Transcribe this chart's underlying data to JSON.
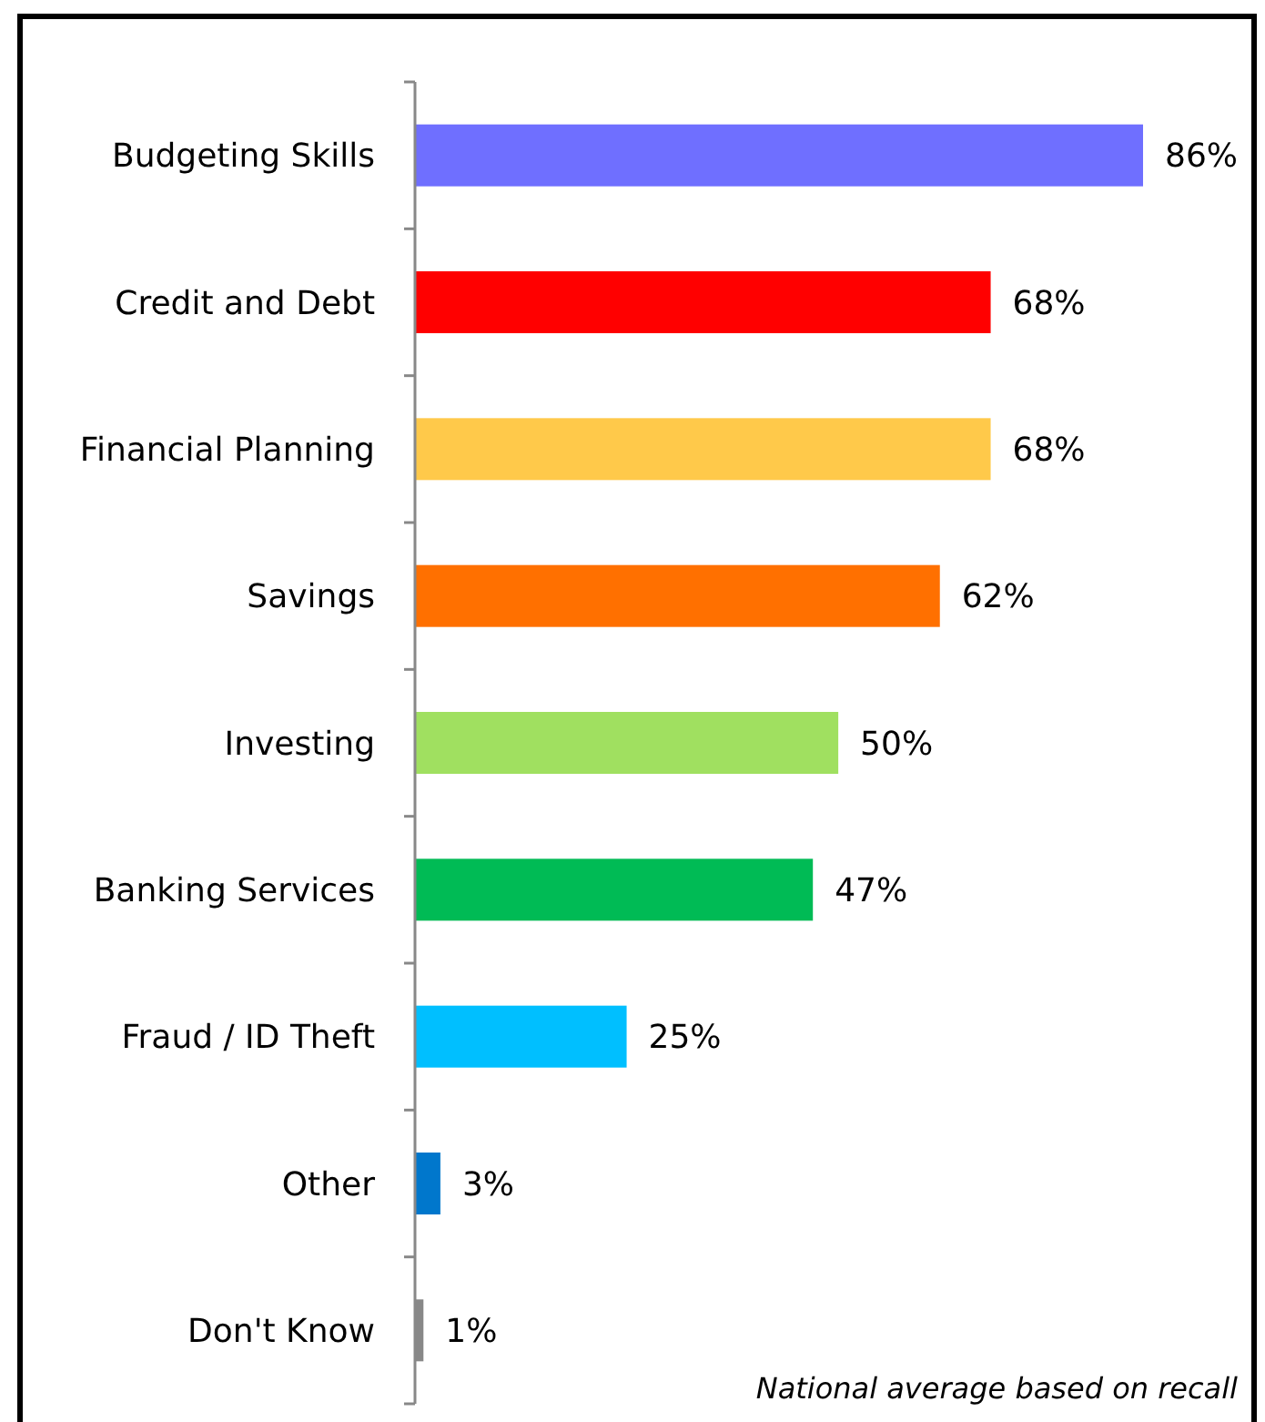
{
  "chart_data": {
    "type": "bar",
    "orientation": "horizontal",
    "categories": [
      "Budgeting Skills",
      "Credit and Debt",
      "Financial Planning",
      "Savings",
      "Investing",
      "Banking Services",
      "Fraud / ID Theft",
      "Other",
      "Don't Know"
    ],
    "values": [
      86,
      68,
      68,
      62,
      50,
      47,
      25,
      3,
      1
    ],
    "colors": [
      "#6f6fff",
      "#ff0000",
      "#ffc94a",
      "#ff7000",
      "#a0e060",
      "#00bb55",
      "#00bfff",
      "#0077cc",
      "#888888"
    ],
    "value_labels": [
      "86%",
      "68%",
      "68%",
      "62%",
      "50%",
      "47%",
      "25%",
      "3%",
      "1%"
    ],
    "annotations": [
      "National average based on recall"
    ]
  }
}
